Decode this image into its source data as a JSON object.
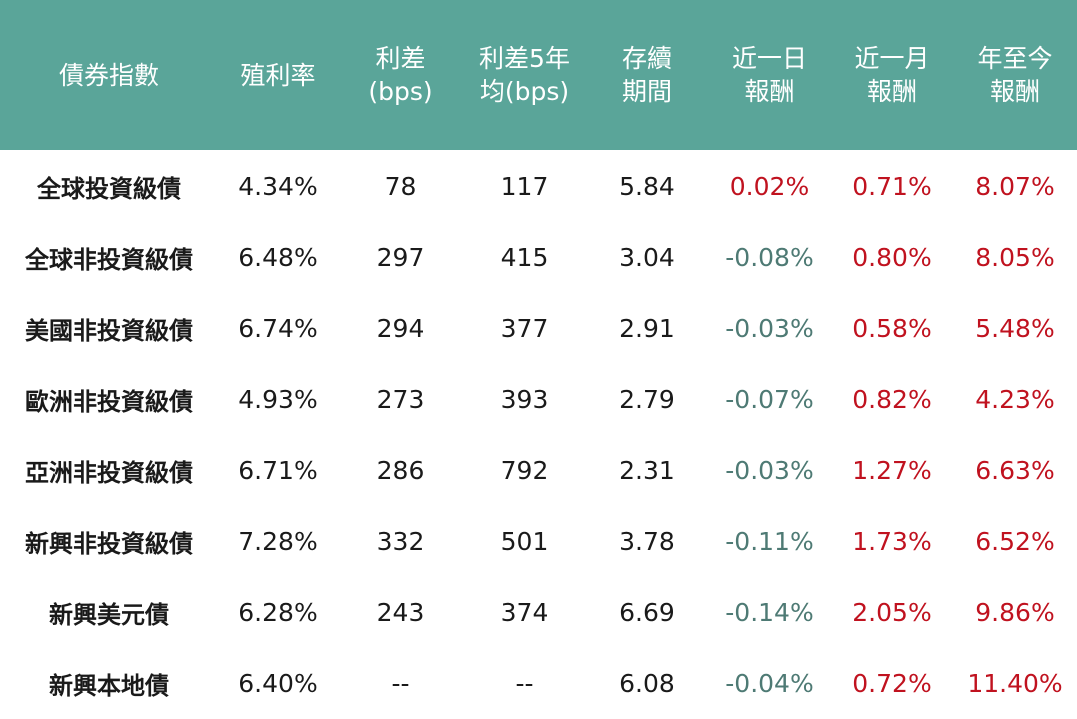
{
  "colors": {
    "header_bg": "#5aa599",
    "header_text": "#ffffff",
    "positive": "#c0121f",
    "negative": "#4e7a74",
    "text": "#1a1a1a"
  },
  "headers": [
    "債券指數",
    "殖利率",
    "利差\n(bps)",
    "利差5年\n均(bps)",
    "存續\n期間",
    "近一日\n報酬",
    "近一月\n報酬",
    "年至今\n報酬"
  ],
  "rows": [
    {
      "name": "全球投資級債",
      "yield": "4.34%",
      "spread": "78",
      "spread_5y": "117",
      "duration": "5.84",
      "ret_1d": "0.02%",
      "ret_1m": "0.71%",
      "ret_ytd": "8.07%"
    },
    {
      "name": "全球非投資級債",
      "yield": "6.48%",
      "spread": "297",
      "spread_5y": "415",
      "duration": "3.04",
      "ret_1d": "-0.08%",
      "ret_1m": "0.80%",
      "ret_ytd": "8.05%"
    },
    {
      "name": "美國非投資級債",
      "yield": "6.74%",
      "spread": "294",
      "spread_5y": "377",
      "duration": "2.91",
      "ret_1d": "-0.03%",
      "ret_1m": "0.58%",
      "ret_ytd": "5.48%"
    },
    {
      "name": "歐洲非投資級債",
      "yield": "4.93%",
      "spread": "273",
      "spread_5y": "393",
      "duration": "2.79",
      "ret_1d": "-0.07%",
      "ret_1m": "0.82%",
      "ret_ytd": "4.23%"
    },
    {
      "name": "亞洲非投資級債",
      "yield": "6.71%",
      "spread": "286",
      "spread_5y": "792",
      "duration": "2.31",
      "ret_1d": "-0.03%",
      "ret_1m": "1.27%",
      "ret_ytd": "6.63%"
    },
    {
      "name": "新興非投資級債",
      "yield": "7.28%",
      "spread": "332",
      "spread_5y": "501",
      "duration": "3.78",
      "ret_1d": "-0.11%",
      "ret_1m": "1.73%",
      "ret_ytd": "6.52%"
    },
    {
      "name": "新興美元債",
      "yield": "6.28%",
      "spread": "243",
      "spread_5y": "374",
      "duration": "6.69",
      "ret_1d": "-0.14%",
      "ret_1m": "2.05%",
      "ret_ytd": "9.86%"
    },
    {
      "name": "新興本地債",
      "yield": "6.40%",
      "spread": "--",
      "spread_5y": "--",
      "duration": "6.08",
      "ret_1d": "-0.04%",
      "ret_1m": "0.72%",
      "ret_ytd": "11.40%"
    }
  ]
}
